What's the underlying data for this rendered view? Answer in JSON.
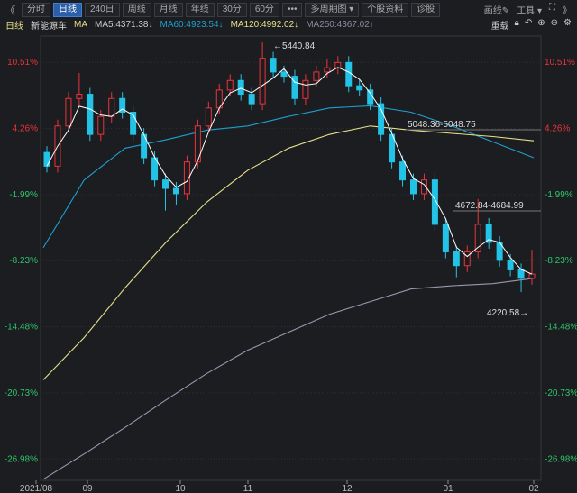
{
  "toolbar": {
    "collapse": "《",
    "tabs": [
      "分时",
      "日线",
      "240日",
      "周线",
      "月线",
      "年线",
      "30分",
      "60分",
      "•••",
      "多周期图 ▾",
      "个股资料",
      "诊股"
    ],
    "active": 1,
    "draw": "画线✎",
    "tools": "工具 ▾",
    "fullscreen": "⛶",
    "expand": "》"
  },
  "info": {
    "period": "日线",
    "name": "新能源车",
    "ma": "MA",
    "ma5": "MA5:4371.38↓",
    "ma60": "MA60:4923.54↓",
    "ma120": "MA120:4992.02↓",
    "ma250": "MA250:4367.02↑",
    "restore": "重载",
    "icons": [
      "lock-icon",
      "undo-icon",
      "zoom-in-icon",
      "zoom-out-icon",
      "gear-icon"
    ]
  },
  "colors": {
    "up": "#e8343a",
    "down": "#22c3e6",
    "ma5": "#ffffff",
    "ma60": "#1e9fd0",
    "ma120": "#e6e08a",
    "ma250": "#9a97b0",
    "ma5_label": "#cccccc",
    "ma60_label": "#1e9fd0",
    "ma120_label": "#e6e08a",
    "ma250_label": "#8a8aa0"
  },
  "chart_data": {
    "type": "candlestick",
    "ylabel": "",
    "xlabel": "",
    "ylim": [
      -29.0,
      13.0
    ],
    "y_ticks": [
      "10.51%",
      "4.26%",
      "-1.99%",
      "-8.23%",
      "-14.48%",
      "-20.73%",
      "-26.98%"
    ],
    "y_tick_values": [
      10.51,
      4.26,
      -1.99,
      -8.23,
      -14.48,
      -20.73,
      -26.98
    ],
    "x_ticks": [
      "2021/08",
      "09",
      "10",
      "11",
      "12",
      "01",
      "02"
    ],
    "grid": true,
    "candles_ochl": [
      [
        2.0,
        0.7,
        2.6,
        0.1
      ],
      [
        0.7,
        4.5,
        5.1,
        0.1
      ],
      [
        4.5,
        7.1,
        7.7,
        3.9
      ],
      [
        7.1,
        7.5,
        9.5,
        6.5
      ],
      [
        7.5,
        3.7,
        8.1,
        3.1
      ],
      [
        3.7,
        5.4,
        6.0,
        3.1
      ],
      [
        5.4,
        7.1,
        7.7,
        4.8
      ],
      [
        7.1,
        5.8,
        7.7,
        5.2
      ],
      [
        5.8,
        3.7,
        6.4,
        3.1
      ],
      [
        3.7,
        1.5,
        4.3,
        0.9
      ],
      [
        1.5,
        -0.6,
        2.1,
        -1.2
      ],
      [
        -0.6,
        -1.4,
        0,
        -3.5
      ],
      [
        -1.4,
        -1.9,
        -0.8,
        -3.0
      ],
      [
        -1.9,
        1.1,
        1.7,
        -2.5
      ],
      [
        1.1,
        4.5,
        5.1,
        0.5
      ],
      [
        4.5,
        6.2,
        6.8,
        3.9
      ],
      [
        6.2,
        7.9,
        8.5,
        5.6
      ],
      [
        7.9,
        8.8,
        9.4,
        7.3
      ],
      [
        8.8,
        7.5,
        9.4,
        6.9
      ],
      [
        7.5,
        6.6,
        8.1,
        6.0
      ],
      [
        6.6,
        10.9,
        12.4,
        6.0
      ],
      [
        10.9,
        9.6,
        11.5,
        9.0
      ],
      [
        9.6,
        9.2,
        10.2,
        8.6
      ],
      [
        9.2,
        7.1,
        9.8,
        6.5
      ],
      [
        7.1,
        8.8,
        9.4,
        6.5
      ],
      [
        8.8,
        9.6,
        10.2,
        8.2
      ],
      [
        9.6,
        10.0,
        10.8,
        9.0
      ],
      [
        10.0,
        10.5,
        11.1,
        9.4
      ],
      [
        10.5,
        8.3,
        11.1,
        7.7
      ],
      [
        8.3,
        7.9,
        8.9,
        7.3
      ],
      [
        7.9,
        6.6,
        8.5,
        6.0
      ],
      [
        6.6,
        3.7,
        7.2,
        3.1
      ],
      [
        3.7,
        1.1,
        4.3,
        0.5
      ],
      [
        1.1,
        -0.6,
        1.7,
        -1.2
      ],
      [
        -0.6,
        -1.9,
        0,
        -2.5
      ],
      [
        -1.9,
        -0.6,
        0,
        -2.5
      ],
      [
        -0.6,
        -4.8,
        0,
        -5.4
      ],
      [
        -4.8,
        -7.4,
        -4.2,
        -8.0
      ],
      [
        -7.4,
        -8.7,
        -6.8,
        -9.8
      ],
      [
        -8.7,
        -7.4,
        -6.8,
        -9.3
      ],
      [
        -7.4,
        -4.8,
        -2.4,
        -8.0
      ],
      [
        -4.8,
        -6.5,
        -4.2,
        -7.1
      ],
      [
        -6.5,
        -8.2,
        -5.9,
        -8.8
      ],
      [
        -8.2,
        -9.1,
        -7.6,
        -9.7
      ],
      [
        -9.1,
        -9.9,
        -8.5,
        -11.2
      ],
      [
        -9.9,
        -9.5,
        -7.2,
        -10.5
      ]
    ],
    "series": [
      {
        "name": "MA60",
        "values": [
          -7.0,
          -0.6,
          2.4,
          3.2,
          4.1,
          4.5,
          5.4,
          6.2,
          6.4,
          5.8,
          4.5,
          3.0,
          1.5
        ]
      },
      {
        "name": "MA120",
        "values": [
          -19.5,
          -15.5,
          -10.8,
          -6.5,
          -2.7,
          0.3,
          2.4,
          3.7,
          4.5,
          4.1,
          3.8,
          3.5,
          3.1
        ]
      },
      {
        "name": "MA250",
        "values": [
          -28.9,
          -26.5,
          -24.0,
          -21.4,
          -18.9,
          -16.7,
          -15.0,
          -13.3,
          -12.1,
          -10.9,
          -10.6,
          -10.4,
          -9.9
        ]
      }
    ],
    "annotations": {
      "high": "←5440.84",
      "low": "4220.58→",
      "range1": "5048.36-5048.75",
      "range2": "4672.84-4684.99"
    }
  }
}
